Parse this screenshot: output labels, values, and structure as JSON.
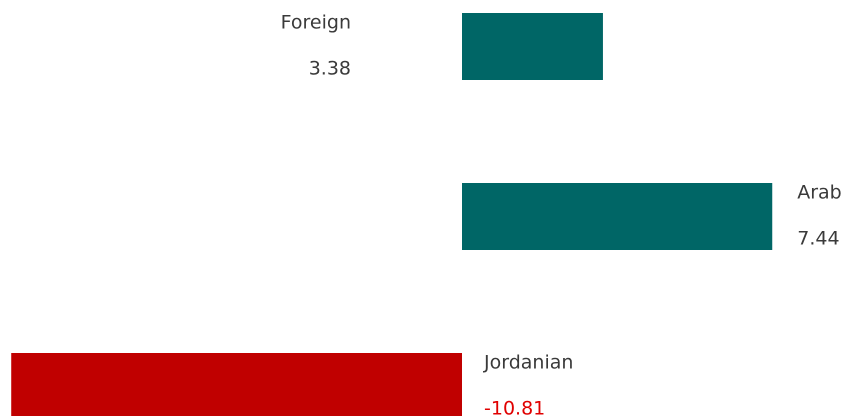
{
  "chart_data": {
    "type": "bar",
    "orientation": "horizontal",
    "categories": [
      "Foreign",
      "Arab",
      "Jordanian"
    ],
    "values": [
      3.38,
      7.44,
      -10.81
    ],
    "colors": [
      "#006666",
      "#006666",
      "#c00000"
    ]
  }
}
